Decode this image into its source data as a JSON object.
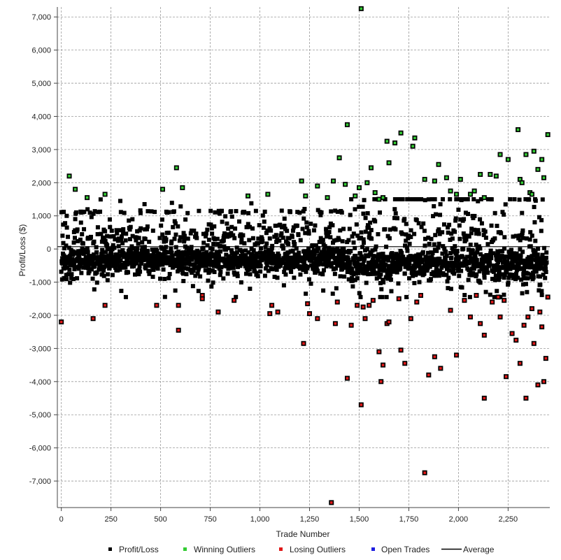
{
  "chart_data": {
    "type": "scatter",
    "xlabel": "Trade Number",
    "ylabel": "Profit/Loss ($)",
    "xlim": [
      -20,
      2460
    ],
    "ylim": [
      -7800,
      7300
    ],
    "x_ticks": [
      0,
      250,
      500,
      750,
      1000,
      1250,
      1500,
      1750,
      2000,
      2250
    ],
    "x_tick_labels": [
      "0",
      "250",
      "500",
      "750",
      "1,000",
      "1,250",
      "1,500",
      "1,750",
      "2,000",
      "2,250"
    ],
    "y_ticks": [
      7000,
      6000,
      5000,
      4000,
      3000,
      2000,
      1000,
      0,
      -1000,
      -2000,
      -3000,
      -4000,
      -5000,
      -6000,
      -7000
    ],
    "y_tick_labels": [
      "7,000",
      "6,000",
      "5,000",
      "4,000",
      "3,000",
      "2,000",
      "1,000",
      "0",
      "-1,000",
      "-2,000",
      "-3,000",
      "-4,000",
      "-5,000",
      "-6,000",
      "-7,000"
    ],
    "grid": true,
    "legend_position": "bottom",
    "average": 70,
    "colors": {
      "profit_loss": "#000000",
      "winning_outliers": "#33cc33",
      "losing_outliers": "#e01818",
      "open_trades": "#1e1ee0",
      "average": "#000000",
      "grid": "#9a9a9a"
    },
    "legend": [
      "Profit/Loss",
      "Winning Outliers",
      "Losing Outliers",
      "Open Trades",
      "Average"
    ],
    "series": [
      {
        "name": "Winning Outliers",
        "x": [
          40,
          70,
          130,
          220,
          510,
          580,
          610,
          940,
          1040,
          1210,
          1230,
          1290,
          1340,
          1370,
          1400,
          1430,
          1440,
          1480,
          1500,
          1510,
          1540,
          1560,
          1580,
          1600,
          1620,
          1640,
          1650,
          1680,
          1710,
          1770,
          1780,
          1830,
          1880,
          1900,
          1940,
          1960,
          1990,
          2010,
          2060,
          2080,
          2110,
          2130,
          2160,
          2190,
          2210,
          2250,
          2300,
          2310,
          2320,
          2340,
          2360,
          2370,
          2380,
          2400,
          2420,
          2430,
          2450
        ],
        "y": [
          2200,
          1800,
          1550,
          1650,
          1800,
          2450,
          1850,
          1600,
          1650,
          2050,
          1600,
          1900,
          1550,
          2050,
          2750,
          1950,
          3750,
          1600,
          1850,
          7250,
          2000,
          2450,
          1700,
          1500,
          1550,
          3250,
          2600,
          3200,
          3500,
          3100,
          3350,
          2100,
          2050,
          2550,
          2150,
          1750,
          1650,
          2100,
          1650,
          1750,
          2250,
          1550,
          2250,
          2200,
          2850,
          2700,
          3600,
          2100,
          2000,
          2850,
          1700,
          1650,
          2950,
          2400,
          2700,
          2150,
          3450
        ]
      },
      {
        "name": "Losing Outliers",
        "x": [
          0,
          160,
          220,
          480,
          590,
          590,
          710,
          710,
          790,
          870,
          1050,
          1060,
          1090,
          1220,
          1240,
          1250,
          1290,
          1360,
          1380,
          1390,
          1440,
          1460,
          1490,
          1510,
          1520,
          1530,
          1550,
          1570,
          1600,
          1610,
          1620,
          1640,
          1650,
          1700,
          1710,
          1730,
          1760,
          1790,
          1810,
          1830,
          1850,
          1880,
          1910,
          1960,
          1990,
          2030,
          2060,
          2090,
          2110,
          2130,
          2130,
          2170,
          2200,
          2210,
          2230,
          2240,
          2270,
          2290,
          2310,
          2330,
          2340,
          2350,
          2370,
          2380,
          2400,
          2410,
          2420,
          2430,
          2440,
          2450
        ],
        "y": [
          -2200,
          -2100,
          -1700,
          -1700,
          -1700,
          -2450,
          -1400,
          -1500,
          -1900,
          -1550,
          -1950,
          -1700,
          -1900,
          -2850,
          -1650,
          -1950,
          -2100,
          -7650,
          -2250,
          -1600,
          -3900,
          -2300,
          -1700,
          -4700,
          -1750,
          -2100,
          -1700,
          -1550,
          -3100,
          -4000,
          -3500,
          -2250,
          -2200,
          -1500,
          -3050,
          -3450,
          -2100,
          -1600,
          -1400,
          -6750,
          -3800,
          -3250,
          -3600,
          -1850,
          -3200,
          -1550,
          -2050,
          -1400,
          -2250,
          -2600,
          -4500,
          -1600,
          -1450,
          -2050,
          -1550,
          -3850,
          -2550,
          -2750,
          -3450,
          -2300,
          -4500,
          -2050,
          -1800,
          -2850,
          -4100,
          -1900,
          -2350,
          -4000,
          -3300,
          -1450
        ]
      },
      {
        "name": "Open Trades",
        "x": [],
        "y": []
      }
    ]
  },
  "legend_labels": {
    "profit_loss": "Profit/Loss",
    "winning_outliers": "Winning Outliers",
    "losing_outliers": "Losing Outliers",
    "open_trades": "Open Trades",
    "average": "Average"
  }
}
